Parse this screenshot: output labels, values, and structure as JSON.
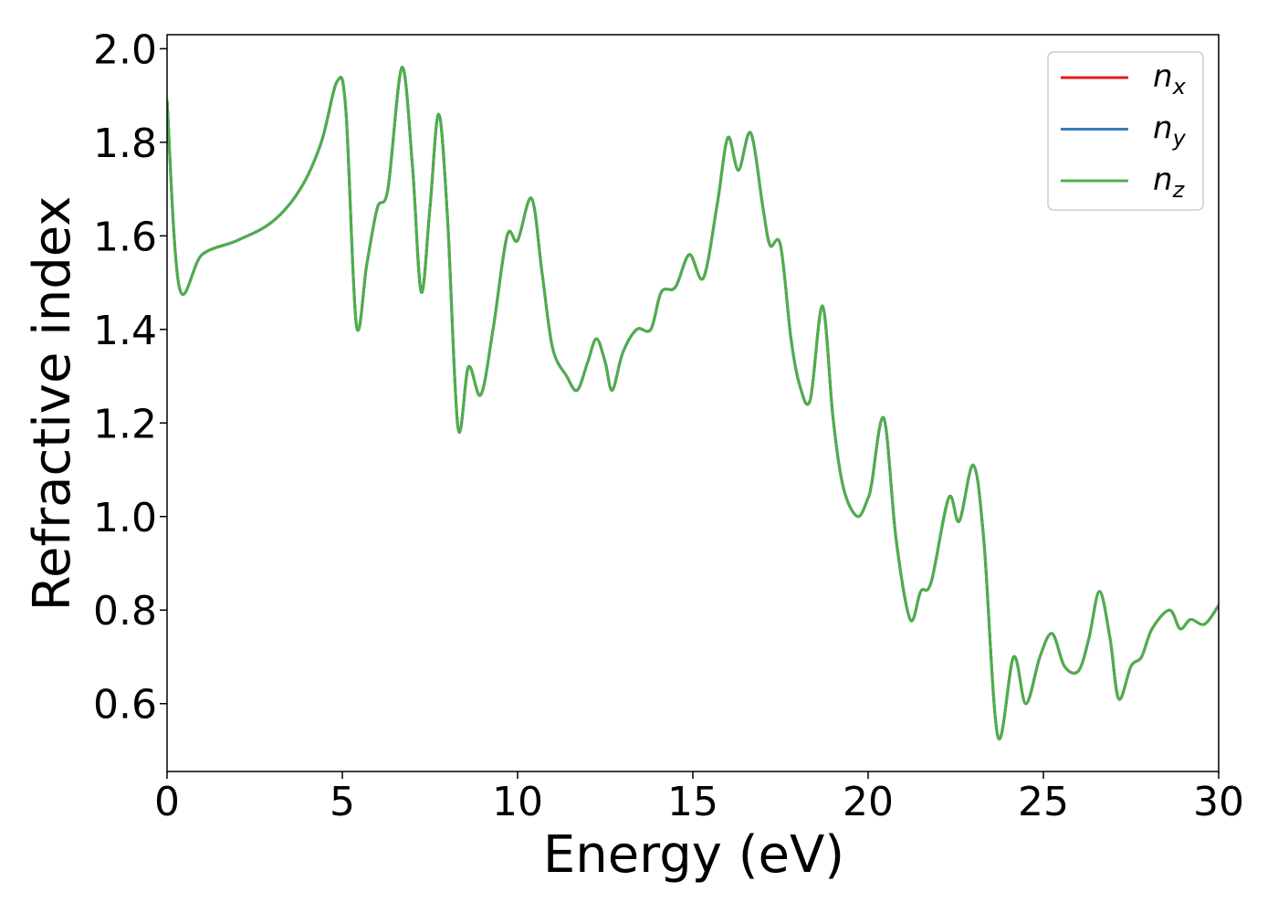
{
  "chart_data": {
    "type": "line",
    "xlabel": "Energy (eV)",
    "ylabel": "Refractive index",
    "x": [
      0,
      0.35,
      1,
      2,
      3,
      3.8,
      4.4,
      4.85,
      5.1,
      5.4,
      5.7,
      6.0,
      6.3,
      6.7,
      7.0,
      7.25,
      7.5,
      7.75,
      8.0,
      8.3,
      8.6,
      8.95,
      9.3,
      9.7,
      10.0,
      10.4,
      10.7,
      11.0,
      11.4,
      11.7,
      12.0,
      12.25,
      12.5,
      12.7,
      13.0,
      13.4,
      13.8,
      14.1,
      14.5,
      14.9,
      15.3,
      15.7,
      16.0,
      16.3,
      16.65,
      17.0,
      17.2,
      17.5,
      17.8,
      18.05,
      18.35,
      18.7,
      19.0,
      19.3,
      19.7,
      20.0,
      20.1,
      20.45,
      20.8,
      21.2,
      21.5,
      21.8,
      22.3,
      22.6,
      23.0,
      23.3,
      23.7,
      24.15,
      24.5,
      24.9,
      25.25,
      25.6,
      26.0,
      26.3,
      26.6,
      26.9,
      27.15,
      27.5,
      27.8,
      28.1,
      28.6,
      28.9,
      29.2,
      29.6,
      30.0
    ],
    "series": [
      {
        "name": "nx",
        "color": "#e41a1c",
        "values": [
          1.89,
          1.49,
          1.56,
          1.59,
          1.63,
          1.7,
          1.8,
          1.93,
          1.87,
          1.41,
          1.54,
          1.66,
          1.7,
          1.96,
          1.75,
          1.48,
          1.66,
          1.86,
          1.64,
          1.19,
          1.32,
          1.26,
          1.4,
          1.6,
          1.59,
          1.68,
          1.52,
          1.36,
          1.3,
          1.27,
          1.33,
          1.38,
          1.33,
          1.27,
          1.35,
          1.4,
          1.4,
          1.48,
          1.49,
          1.56,
          1.51,
          1.67,
          1.81,
          1.74,
          1.82,
          1.66,
          1.58,
          1.58,
          1.38,
          1.28,
          1.25,
          1.45,
          1.21,
          1.06,
          1.0,
          1.04,
          1.07,
          1.21,
          0.95,
          0.78,
          0.84,
          0.86,
          1.04,
          0.99,
          1.11,
          0.95,
          0.53,
          0.7,
          0.6,
          0.7,
          0.75,
          0.68,
          0.67,
          0.74,
          0.84,
          0.74,
          0.61,
          0.68,
          0.7,
          0.76,
          0.8,
          0.76,
          0.78,
          0.77,
          0.81
        ]
      },
      {
        "name": "ny",
        "color": "#377eb8",
        "values": [
          1.89,
          1.49,
          1.56,
          1.59,
          1.63,
          1.7,
          1.8,
          1.93,
          1.87,
          1.41,
          1.54,
          1.66,
          1.7,
          1.96,
          1.75,
          1.48,
          1.66,
          1.86,
          1.64,
          1.19,
          1.32,
          1.26,
          1.4,
          1.6,
          1.59,
          1.68,
          1.52,
          1.36,
          1.3,
          1.27,
          1.33,
          1.38,
          1.33,
          1.27,
          1.35,
          1.4,
          1.4,
          1.48,
          1.49,
          1.56,
          1.51,
          1.67,
          1.81,
          1.74,
          1.82,
          1.66,
          1.58,
          1.58,
          1.38,
          1.28,
          1.25,
          1.45,
          1.21,
          1.06,
          1.0,
          1.04,
          1.07,
          1.21,
          0.95,
          0.78,
          0.84,
          0.86,
          1.04,
          0.99,
          1.11,
          0.95,
          0.53,
          0.7,
          0.6,
          0.7,
          0.75,
          0.68,
          0.67,
          0.74,
          0.84,
          0.74,
          0.61,
          0.68,
          0.7,
          0.76,
          0.8,
          0.76,
          0.78,
          0.77,
          0.81
        ]
      },
      {
        "name": "nz",
        "color": "#4daf4a",
        "values": [
          1.89,
          1.49,
          1.56,
          1.59,
          1.63,
          1.7,
          1.8,
          1.93,
          1.87,
          1.41,
          1.54,
          1.66,
          1.7,
          1.96,
          1.75,
          1.48,
          1.66,
          1.86,
          1.64,
          1.19,
          1.32,
          1.26,
          1.4,
          1.6,
          1.59,
          1.68,
          1.52,
          1.36,
          1.3,
          1.27,
          1.33,
          1.38,
          1.33,
          1.27,
          1.35,
          1.4,
          1.4,
          1.48,
          1.49,
          1.56,
          1.51,
          1.67,
          1.81,
          1.74,
          1.82,
          1.66,
          1.58,
          1.58,
          1.38,
          1.28,
          1.25,
          1.45,
          1.21,
          1.06,
          1.0,
          1.04,
          1.07,
          1.21,
          0.95,
          0.78,
          0.84,
          0.86,
          1.04,
          0.99,
          1.11,
          0.95,
          0.53,
          0.7,
          0.6,
          0.7,
          0.75,
          0.68,
          0.67,
          0.74,
          0.84,
          0.74,
          0.61,
          0.68,
          0.7,
          0.76,
          0.8,
          0.76,
          0.78,
          0.77,
          0.81
        ]
      }
    ],
    "xlim": [
      0,
      30
    ],
    "xticks": [
      0,
      5,
      10,
      15,
      20,
      25,
      30
    ],
    "ylim": [
      0.455,
      2.03
    ],
    "yticks": [
      0.6,
      0.8,
      {
        "value": 1,
        "label": "1.0"
      },
      1.2,
      1.4,
      1.6,
      1.8,
      {
        "value": 2,
        "label": "2.0"
      }
    ],
    "grid": false,
    "legend": "upper right"
  }
}
